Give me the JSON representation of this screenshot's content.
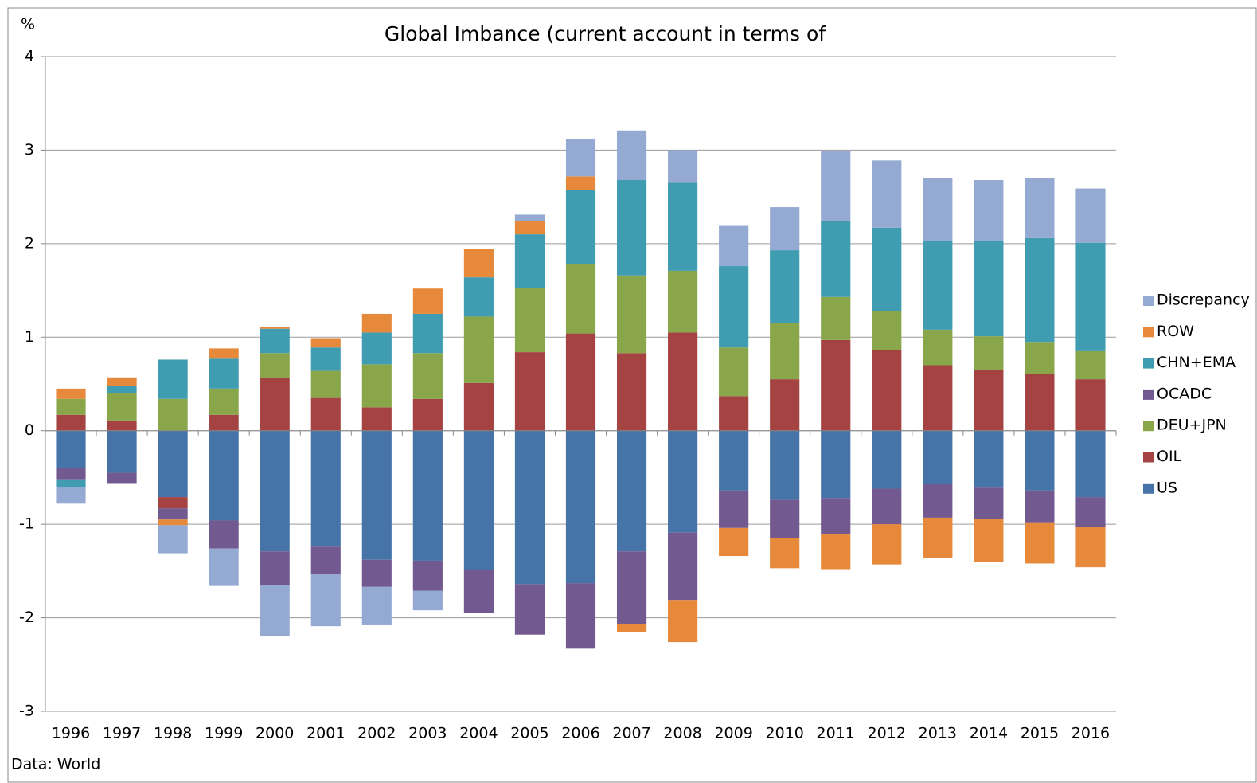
{
  "chart_data": {
    "type": "stacked_bar",
    "title": "Global Imbance (current account in terms of",
    "y_unit": "%",
    "source": "Data: World",
    "categories": [
      "1996",
      "1997",
      "1998",
      "1999",
      "2000",
      "2001",
      "2002",
      "2003",
      "2004",
      "2005",
      "2006",
      "2007",
      "2008",
      "2009",
      "2010",
      "2011",
      "2012",
      "2013",
      "2014",
      "2015",
      "2016"
    ],
    "ylim": [
      -3,
      4
    ],
    "yticks": [
      -3,
      -2,
      -1,
      0,
      1,
      2,
      3,
      4
    ],
    "grid": true,
    "legend": "right",
    "series": [
      {
        "name": "US",
        "color": "#4674a8",
        "values": [
          -0.4,
          -0.45,
          -0.71,
          -0.96,
          -1.29,
          -1.24,
          -1.38,
          -1.39,
          -1.49,
          -1.64,
          -1.63,
          -1.29,
          -1.09,
          -0.64,
          -0.74,
          -0.72,
          -0.62,
          -0.57,
          -0.61,
          -0.64,
          -0.71
        ]
      },
      {
        "name": "OIL",
        "color": "#a54343",
        "values": [
          0.17,
          0.11,
          -0.12,
          0.17,
          0.56,
          0.35,
          0.25,
          0.34,
          0.51,
          0.84,
          1.04,
          0.83,
          1.05,
          0.37,
          0.55,
          0.97,
          0.86,
          0.7,
          0.65,
          0.61,
          0.55
        ]
      },
      {
        "name": "DEU+JPN",
        "color": "#89a64b",
        "values": [
          0.17,
          0.29,
          0.34,
          0.28,
          0.27,
          0.29,
          0.46,
          0.49,
          0.71,
          0.69,
          0.74,
          0.83,
          0.66,
          0.52,
          0.6,
          0.46,
          0.42,
          0.38,
          0.36,
          0.34,
          0.3
        ]
      },
      {
        "name": "OCADC",
        "color": "#725990",
        "values": [
          -0.12,
          -0.11,
          -0.12,
          -0.3,
          -0.36,
          -0.29,
          -0.29,
          -0.32,
          -0.46,
          -0.54,
          -0.7,
          -0.78,
          -0.72,
          -0.4,
          -0.41,
          -0.39,
          -0.38,
          -0.36,
          -0.33,
          -0.34,
          -0.32
        ]
      },
      {
        "name": "CHN+EMA",
        "color": "#409db1",
        "values": [
          -0.08,
          0.08,
          0.42,
          0.32,
          0.26,
          0.25,
          0.34,
          0.42,
          0.42,
          0.57,
          0.79,
          1.02,
          0.94,
          0.87,
          0.78,
          0.81,
          0.89,
          0.95,
          1.02,
          1.11,
          1.16
        ]
      },
      {
        "name": "ROW",
        "color": "#e6893b",
        "values": [
          0.11,
          0.09,
          -0.06,
          0.11,
          0.02,
          0.1,
          0.2,
          0.27,
          0.3,
          0.14,
          0.15,
          -0.08,
          -0.45,
          -0.3,
          -0.32,
          -0.37,
          -0.43,
          -0.43,
          -0.46,
          -0.44,
          -0.43
        ]
      },
      {
        "name": "Discrepancy",
        "color": "#94aad2",
        "values": [
          -0.18,
          0,
          -0.3,
          -0.4,
          -0.55,
          -0.56,
          -0.41,
          -0.21,
          0,
          0.07,
          0.4,
          0.53,
          0.35,
          0.43,
          0.46,
          0.75,
          0.72,
          0.67,
          0.65,
          0.64,
          0.58
        ]
      }
    ]
  }
}
